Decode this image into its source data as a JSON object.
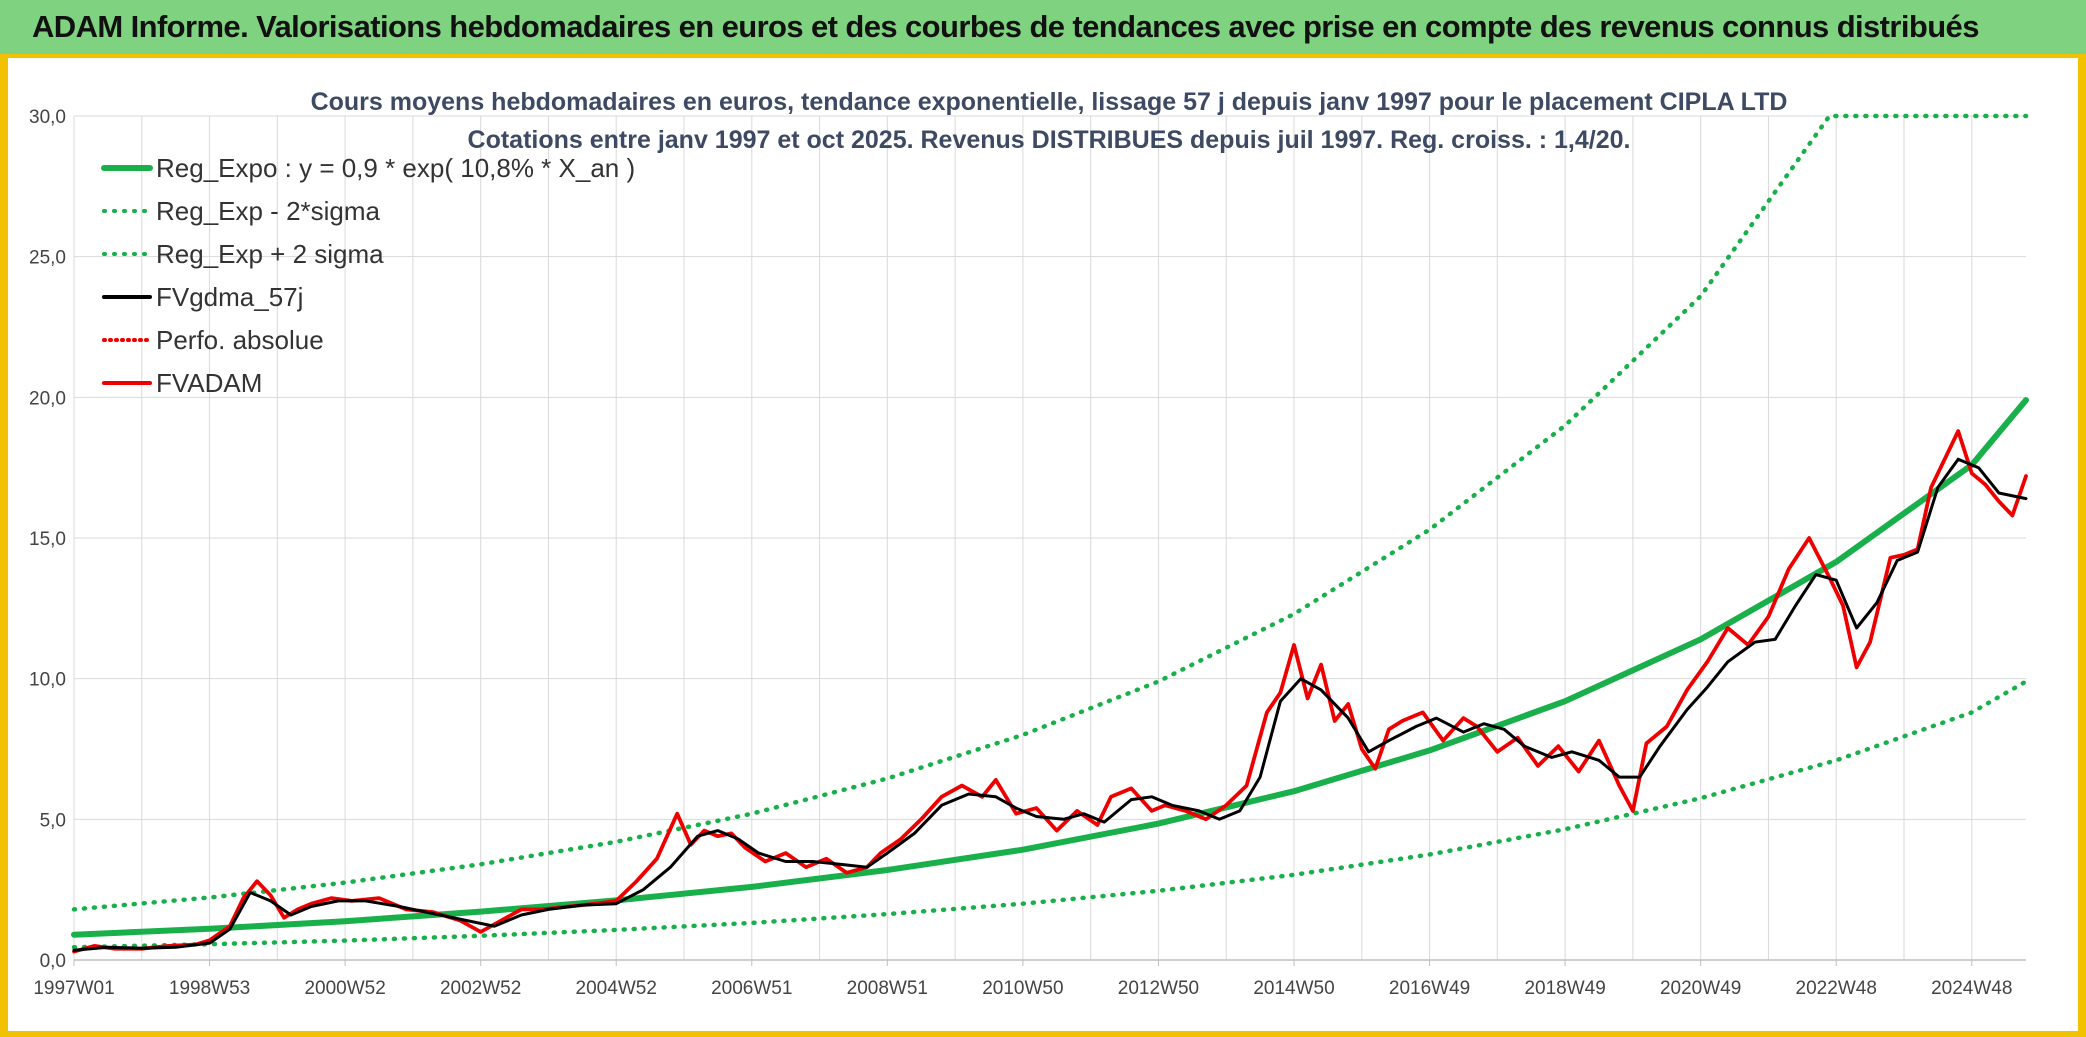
{
  "header": {
    "title": "ADAM Informe. Valorisations hebdomadaires en euros et des courbes de tendances avec prise en compte des revenus connus distribués"
  },
  "colors": {
    "header_bg": "#7fd27f",
    "frame": "#f2c200",
    "reg_expo": "#19b04b",
    "fvgdma": "#000000",
    "fvadam": "#ee0000",
    "perfo": "#ee0000",
    "grid": "#d9d9d9"
  },
  "chart_data": {
    "type": "line",
    "title": "Cours moyens hebdomadaires en euros, tendance exponentielle, lissage 57 j depuis janv 1997 pour le placement CIPLA LTD",
    "subtitle": "Cotations entre janv 1997 et oct 2025. Revenus DISTRIBUES depuis juil 1997. Reg. croiss. : 1,4/20.",
    "xlabel": "",
    "ylabel": "",
    "xlim": [
      1997.0,
      2025.8
    ],
    "ylim": [
      0,
      30
    ],
    "y_ticks": [
      "0,0",
      "5,0",
      "10,0",
      "15,0",
      "20,0",
      "25,0",
      "30,0"
    ],
    "y_tick_values": [
      0,
      5,
      10,
      15,
      20,
      25,
      30
    ],
    "x_tick_labels": [
      "1997W01",
      "1998W53",
      "2000W52",
      "2002W52",
      "2004W52",
      "2006W51",
      "2008W51",
      "2010W50",
      "2012W50",
      "2014W50",
      "2016W49",
      "2018W49",
      "2020W49",
      "2022W48",
      "2024W48"
    ],
    "x_tick_values": [
      1997.0,
      1999.0,
      2001.0,
      2003.0,
      2005.0,
      2007.0,
      2009.0,
      2011.0,
      2013.0,
      2015.0,
      2017.0,
      2019.0,
      2021.0,
      2023.0,
      2025.0
    ],
    "grid": true,
    "legend_position": "top-left",
    "series": [
      {
        "name": "Reg_Expo : y = 0,9 * exp( 10,8% *  X_an )",
        "style": "solid-thick",
        "x": [
          1997,
          1999,
          2001,
          2003,
          2005,
          2007,
          2009,
          2011,
          2013,
          2015,
          2017,
          2019,
          2021,
          2023,
          2025,
          2025.8
        ],
        "values": [
          0.9,
          1.11,
          1.38,
          1.72,
          2.12,
          2.6,
          3.2,
          3.92,
          4.85,
          6.0,
          7.45,
          9.2,
          11.4,
          14.15,
          17.6,
          19.9
        ]
      },
      {
        "name": "Reg_Exp - 2*sigma",
        "style": "dotted",
        "x": [
          1997,
          1999,
          2001,
          2003,
          2005,
          2007,
          2009,
          2011,
          2013,
          2015,
          2017,
          2019,
          2021,
          2023,
          2025,
          2025.8
        ],
        "values": [
          0.45,
          0.56,
          0.69,
          0.86,
          1.07,
          1.32,
          1.63,
          2.0,
          2.46,
          3.03,
          3.75,
          4.65,
          5.75,
          7.1,
          8.8,
          9.9
        ]
      },
      {
        "name": "Reg_Exp + 2 sigma",
        "style": "dotted",
        "x": [
          1997,
          1999,
          2001,
          2003,
          2005,
          2007,
          2009,
          2011,
          2013,
          2015,
          2017,
          2019,
          2021,
          2022.9,
          2023,
          2025,
          2025.8
        ],
        "values": [
          1.8,
          2.22,
          2.75,
          3.4,
          4.2,
          5.2,
          6.45,
          8.0,
          9.9,
          12.3,
          15.3,
          19.0,
          23.6,
          30.0,
          30.0,
          30.0,
          30.0
        ]
      },
      {
        "name": "FVgdma_57j",
        "style": "solid-thin",
        "x": [
          1997.0,
          1997.5,
          1998.0,
          1998.5,
          1999.0,
          1999.3,
          1999.6,
          1999.9,
          2000.2,
          2000.5,
          2000.9,
          2001.3,
          2001.8,
          2002.3,
          2002.8,
          2003.2,
          2003.6,
          2004.0,
          2004.5,
          2005.0,
          2005.4,
          2005.8,
          2006.2,
          2006.5,
          2006.8,
          2007.1,
          2007.5,
          2007.9,
          2008.3,
          2008.7,
          2009.0,
          2009.4,
          2009.8,
          2010.2,
          2010.6,
          2010.9,
          2011.2,
          2011.6,
          2011.9,
          2012.2,
          2012.6,
          2012.9,
          2013.2,
          2013.6,
          2013.9,
          2014.2,
          2014.5,
          2014.8,
          2015.1,
          2015.4,
          2015.8,
          2016.1,
          2016.4,
          2016.8,
          2017.1,
          2017.5,
          2017.8,
          2018.1,
          2018.4,
          2018.8,
          2019.1,
          2019.5,
          2019.8,
          2020.1,
          2020.4,
          2020.8,
          2021.1,
          2021.4,
          2021.8,
          2022.1,
          2022.4,
          2022.7,
          2023.0,
          2023.3,
          2023.6,
          2023.9,
          2024.2,
          2024.5,
          2024.8,
          2025.1,
          2025.4,
          2025.8
        ],
        "values": [
          0.35,
          0.45,
          0.42,
          0.45,
          0.6,
          1.1,
          2.4,
          2.1,
          1.6,
          1.9,
          2.1,
          2.1,
          1.9,
          1.65,
          1.4,
          1.2,
          1.6,
          1.8,
          1.95,
          2.0,
          2.5,
          3.3,
          4.4,
          4.6,
          4.3,
          3.8,
          3.5,
          3.5,
          3.4,
          3.3,
          3.8,
          4.5,
          5.5,
          5.9,
          5.8,
          5.4,
          5.1,
          5.0,
          5.2,
          4.9,
          5.7,
          5.8,
          5.5,
          5.3,
          5.0,
          5.3,
          6.5,
          9.2,
          10.0,
          9.6,
          8.6,
          7.4,
          7.8,
          8.3,
          8.6,
          8.1,
          8.4,
          8.2,
          7.6,
          7.2,
          7.4,
          7.1,
          6.5,
          6.5,
          7.6,
          8.9,
          9.7,
          10.6,
          11.3,
          11.4,
          12.6,
          13.7,
          13.5,
          11.8,
          12.7,
          14.2,
          14.5,
          16.8,
          17.8,
          17.5,
          16.6,
          16.4
        ]
      },
      {
        "name": "Perfo. absolue",
        "style": "dotted-thin",
        "x": [],
        "values": []
      },
      {
        "name": "FVADAM",
        "style": "solid-medium",
        "x": [
          1997.0,
          1997.3,
          1997.6,
          1998.0,
          1998.4,
          1998.8,
          1999.0,
          1999.3,
          1999.5,
          1999.7,
          1999.9,
          2000.1,
          2000.3,
          2000.5,
          2000.8,
          2001.1,
          2001.5,
          2001.9,
          2002.3,
          2002.7,
          2003.0,
          2003.3,
          2003.6,
          2003.9,
          2004.3,
          2004.7,
          2005.0,
          2005.3,
          2005.6,
          2005.9,
          2006.1,
          2006.3,
          2006.5,
          2006.7,
          2006.9,
          2007.2,
          2007.5,
          2007.8,
          2008.1,
          2008.4,
          2008.7,
          2008.9,
          2009.2,
          2009.5,
          2009.8,
          2010.1,
          2010.4,
          2010.6,
          2010.9,
          2011.2,
          2011.5,
          2011.8,
          2012.1,
          2012.3,
          2012.6,
          2012.9,
          2013.1,
          2013.4,
          2013.7,
          2014.0,
          2014.3,
          2014.6,
          2014.8,
          2015.0,
          2015.2,
          2015.4,
          2015.6,
          2015.8,
          2016.0,
          2016.2,
          2016.4,
          2016.6,
          2016.9,
          2017.2,
          2017.5,
          2017.7,
          2018.0,
          2018.3,
          2018.6,
          2018.9,
          2019.2,
          2019.5,
          2019.8,
          2020.0,
          2020.2,
          2020.5,
          2020.8,
          2021.1,
          2021.4,
          2021.7,
          2022.0,
          2022.3,
          2022.6,
          2022.9,
          2023.1,
          2023.3,
          2023.5,
          2023.8,
          2024.0,
          2024.2,
          2024.4,
          2024.6,
          2024.8,
          2025.0,
          2025.2,
          2025.4,
          2025.6,
          2025.8
        ],
        "values": [
          0.3,
          0.5,
          0.4,
          0.4,
          0.5,
          0.55,
          0.7,
          1.2,
          2.2,
          2.8,
          2.3,
          1.5,
          1.8,
          2.0,
          2.2,
          2.1,
          2.2,
          1.8,
          1.7,
          1.4,
          1.0,
          1.4,
          1.8,
          1.8,
          1.9,
          2.0,
          2.1,
          2.8,
          3.6,
          5.2,
          4.1,
          4.6,
          4.4,
          4.5,
          4.0,
          3.5,
          3.8,
          3.3,
          3.6,
          3.1,
          3.3,
          3.8,
          4.3,
          5.0,
          5.8,
          6.2,
          5.8,
          6.4,
          5.2,
          5.4,
          4.6,
          5.3,
          4.8,
          5.8,
          6.1,
          5.3,
          5.5,
          5.3,
          5.0,
          5.5,
          6.2,
          8.8,
          9.5,
          11.2,
          9.3,
          10.5,
          8.5,
          9.1,
          7.5,
          6.8,
          8.2,
          8.5,
          8.8,
          7.8,
          8.6,
          8.3,
          7.4,
          7.9,
          6.9,
          7.6,
          6.7,
          7.8,
          6.2,
          5.3,
          7.7,
          8.3,
          9.6,
          10.6,
          11.8,
          11.2,
          12.2,
          13.9,
          15.0,
          13.6,
          12.6,
          10.4,
          11.3,
          14.3,
          14.4,
          14.6,
          16.8,
          17.8,
          18.8,
          17.3,
          16.9,
          16.3,
          15.8,
          17.2
        ]
      }
    ]
  }
}
